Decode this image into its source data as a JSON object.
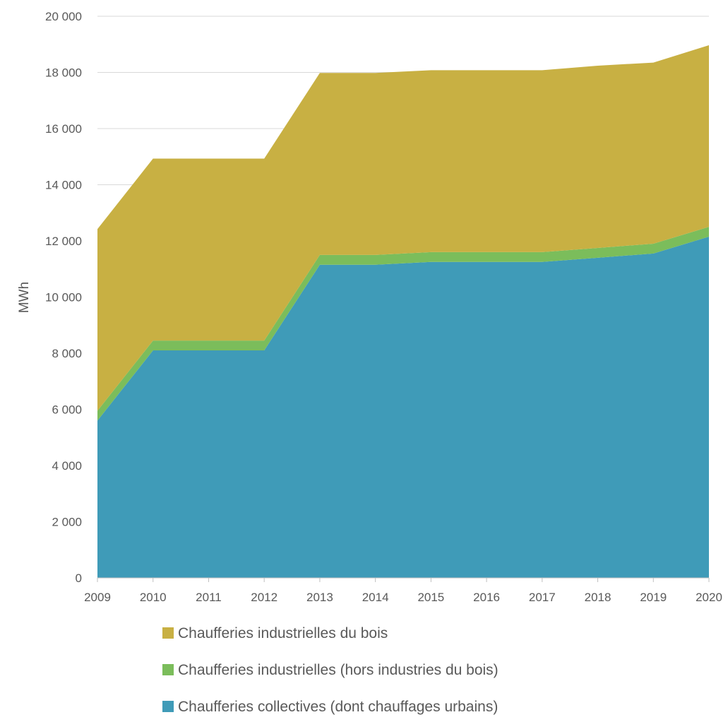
{
  "chart_data": {
    "type": "area",
    "stacked": true,
    "title": "",
    "xlabel": "",
    "ylabel": "MWh",
    "ylim": [
      0,
      20000
    ],
    "yticks": [
      0,
      2000,
      4000,
      6000,
      8000,
      10000,
      12000,
      14000,
      16000,
      18000,
      20000
    ],
    "ytick_labels": [
      "0",
      "2 000",
      "4 000",
      "6 000",
      "8 000",
      "10 000",
      "12 000",
      "14 000",
      "16 000",
      "18 000",
      "20 000"
    ],
    "x": [
      "2009",
      "2010",
      "2011",
      "2012",
      "2013",
      "2014",
      "2015",
      "2016",
      "2017",
      "2018",
      "2019",
      "2020"
    ],
    "grid": "horizontal",
    "legend_position": "bottom",
    "series": [
      {
        "name": "Chaufferies collectives (dont chauffages urbains)",
        "color": "#3f9bb8",
        "values": [
          5600,
          8100,
          8100,
          8100,
          11150,
          11150,
          11250,
          11250,
          11250,
          11400,
          11550,
          12150
        ]
      },
      {
        "name": "Chaufferies industrielles (hors industries du bois)",
        "color": "#7bbd5b",
        "values": [
          350,
          350,
          350,
          350,
          350,
          350,
          350,
          350,
          350,
          350,
          350,
          350
        ]
      },
      {
        "name": "Chaufferies industrielles du bois",
        "color": "#c8b043",
        "values": [
          6470,
          6480,
          6480,
          6480,
          6480,
          6480,
          6480,
          6480,
          6480,
          6490,
          6450,
          6470
        ]
      }
    ],
    "legend_order": [
      2,
      1,
      0
    ]
  }
}
